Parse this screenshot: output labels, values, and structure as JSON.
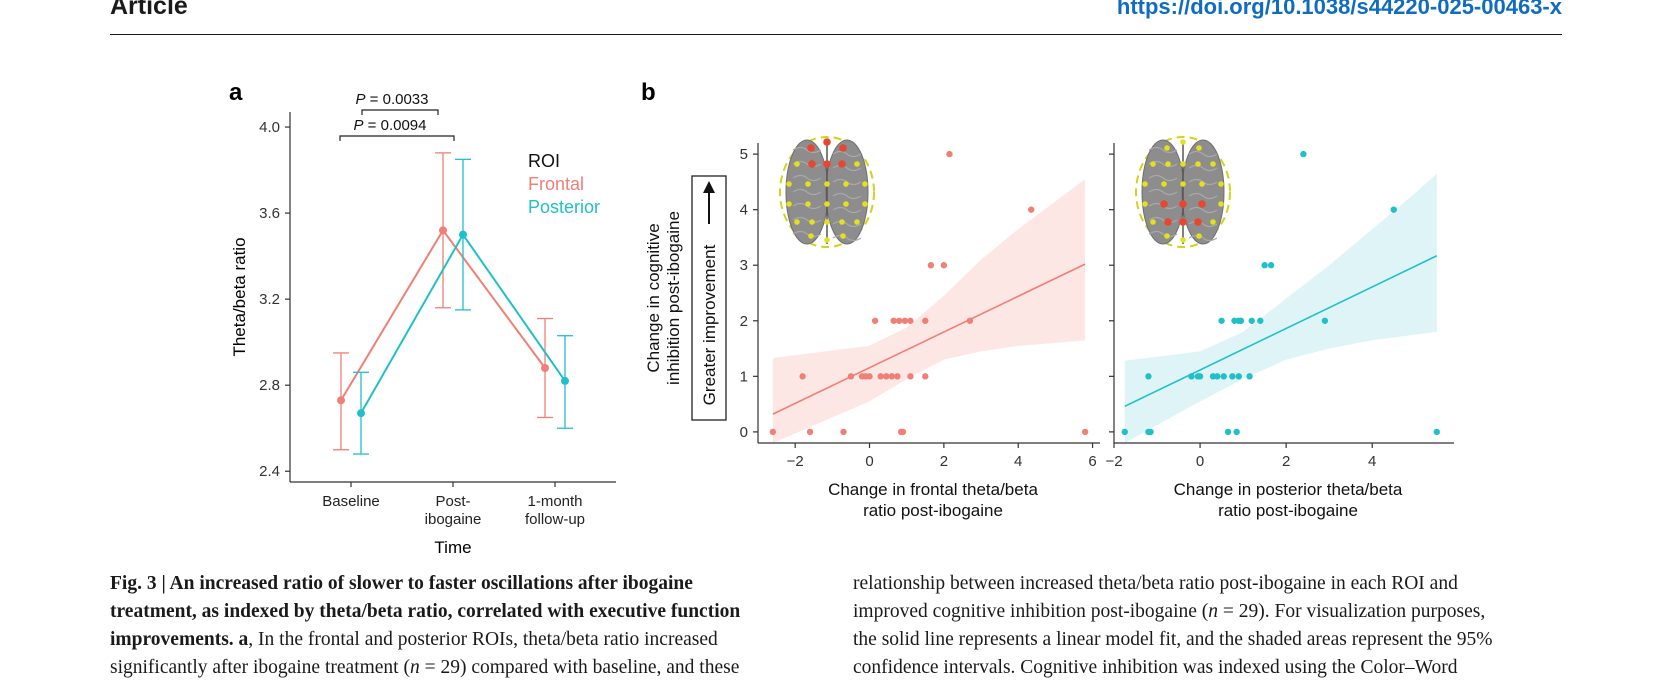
{
  "header": {
    "section": "Article",
    "doi": "https://doi.org/10.1038/s44220-025-00463-x"
  },
  "colors": {
    "frontal": "#f07f76",
    "posterior": "#20c0c8",
    "frontal_band": "#fde7e5",
    "posterior_band": "#dff4f6",
    "link": "#0f6cbf"
  },
  "panel_a": {
    "label": "a",
    "ylabel": "Theta/beta ratio",
    "xlabel": "Time",
    "yticks": [
      "4.0",
      "3.6",
      "3.2",
      "2.8",
      "2.4"
    ],
    "xcats": [
      [
        "Baseline"
      ],
      [
        "Post-",
        "ibogaine"
      ],
      [
        "1-month",
        "follow-up"
      ]
    ],
    "legend": {
      "title": "ROI",
      "items": [
        "Frontal",
        "Posterior"
      ]
    },
    "sig": [
      {
        "p_label": "P",
        "text": " = 0.0033"
      },
      {
        "p_label": "P",
        "text": " = 0.0094"
      }
    ]
  },
  "panel_b": {
    "label": "b",
    "ylabel_lines": [
      "Change in cognitive",
      "inhibition post-ibogaine"
    ],
    "arrow_label": "Greater improvement",
    "yticks": [
      "5",
      "4",
      "3",
      "2",
      "1",
      "0"
    ],
    "left": {
      "xticks": [
        "−2",
        "0",
        "2",
        "4",
        "6"
      ],
      "xlabel_lines": [
        "Change in frontal theta/beta",
        "ratio post-ibogaine"
      ]
    },
    "right": {
      "xticks": [
        "−2",
        "0",
        "2",
        "4"
      ],
      "xlabel_lines": [
        "Change in posterior theta/beta",
        "ratio post-ibogaine"
      ]
    }
  },
  "chart_data": [
    {
      "type": "line",
      "panel": "a",
      "categories": [
        "Baseline",
        "Post-ibogaine",
        "1-month follow-up"
      ],
      "ylabel": "Theta/beta ratio",
      "xlabel": "Time",
      "ylim": [
        2.35,
        4.07
      ],
      "series": [
        {
          "name": "Frontal",
          "values": [
            2.73,
            3.52,
            2.88
          ],
          "err_low": [
            2.5,
            3.16,
            2.65
          ],
          "err_high": [
            2.95,
            3.88,
            3.11
          ]
        },
        {
          "name": "Posterior",
          "values": [
            2.67,
            3.5,
            2.82
          ],
          "err_low": [
            2.48,
            3.15,
            2.6
          ],
          "err_high": [
            2.86,
            3.85,
            3.03
          ]
        }
      ],
      "annotations": [
        "P = 0.0033",
        "P = 0.0094"
      ]
    },
    {
      "type": "scatter",
      "panel": "b-left",
      "xlim": [
        -3,
        6.2
      ],
      "ylim": [
        -0.2,
        5.2
      ],
      "points": [
        [
          -2.6,
          0
        ],
        [
          -1.6,
          0
        ],
        [
          -0.7,
          0
        ],
        [
          0.85,
          0
        ],
        [
          0.9,
          0
        ],
        [
          5.8,
          0
        ],
        [
          -1.8,
          1
        ],
        [
          -0.5,
          1
        ],
        [
          -0.2,
          1
        ],
        [
          -0.1,
          1
        ],
        [
          0,
          1
        ],
        [
          0.3,
          1
        ],
        [
          0.45,
          1
        ],
        [
          0.6,
          1
        ],
        [
          0.75,
          1
        ],
        [
          1.1,
          1
        ],
        [
          1.5,
          1
        ],
        [
          0.15,
          2
        ],
        [
          0.65,
          2
        ],
        [
          0.8,
          2
        ],
        [
          0.95,
          2
        ],
        [
          1.1,
          2
        ],
        [
          1.5,
          2
        ],
        [
          2.7,
          2
        ],
        [
          1.65,
          3
        ],
        [
          2.0,
          3
        ],
        [
          4.35,
          4
        ],
        [
          2.15,
          5
        ]
      ],
      "fit": {
        "x": [
          -2.6,
          5.8
        ],
        "y": [
          0.32,
          3.02
        ]
      },
      "ci": {
        "x": [
          -2.6,
          0,
          1,
          2,
          3,
          4,
          5,
          5.8
        ],
        "lower": [
          -0.6,
          0.55,
          0.95,
          1.3,
          1.45,
          1.55,
          1.6,
          1.65
        ],
        "upper": [
          1.33,
          1.55,
          1.88,
          2.45,
          3.1,
          3.65,
          4.15,
          4.55
        ]
      }
    },
    {
      "type": "scatter",
      "panel": "b-right",
      "xlim": [
        -2.0,
        5.9
      ],
      "ylim": [
        -0.2,
        5.2
      ],
      "points": [
        [
          -1.75,
          0
        ],
        [
          -1.2,
          0
        ],
        [
          -1.15,
          0
        ],
        [
          0.65,
          0
        ],
        [
          0.85,
          0
        ],
        [
          5.5,
          0
        ],
        [
          -1.2,
          1
        ],
        [
          -0.2,
          1
        ],
        [
          -0.05,
          1
        ],
        [
          0,
          1
        ],
        [
          0.3,
          1
        ],
        [
          0.4,
          1
        ],
        [
          0.55,
          1
        ],
        [
          0.75,
          1
        ],
        [
          0.9,
          1
        ],
        [
          1.15,
          1
        ],
        [
          0.5,
          2
        ],
        [
          0.8,
          2
        ],
        [
          0.9,
          2
        ],
        [
          0.95,
          2
        ],
        [
          1.2,
          2
        ],
        [
          1.4,
          2
        ],
        [
          2.9,
          2
        ],
        [
          1.5,
          3
        ],
        [
          1.65,
          3
        ],
        [
          4.5,
          4
        ],
        [
          2.4,
          5
        ]
      ],
      "fit": {
        "x": [
          -1.75,
          5.5
        ],
        "y": [
          0.46,
          3.17
        ]
      },
      "ci": {
        "x": [
          -1.75,
          0,
          1,
          2,
          3,
          4,
          5,
          5.5
        ],
        "lower": [
          -0.4,
          0.55,
          0.95,
          1.3,
          1.5,
          1.65,
          1.75,
          1.8
        ],
        "upper": [
          1.28,
          1.45,
          1.8,
          2.4,
          3.0,
          3.65,
          4.3,
          4.65
        ]
      }
    }
  ],
  "caption": {
    "left_lines": [
      [
        {
          "t": "Fig. 3 | An increased ratio of slower to faster oscillations after ibogaine",
          "s": "b"
        }
      ],
      [
        {
          "t": "treatment, as indexed by theta/beta ratio, correlated with executive function",
          "s": "b"
        }
      ],
      [
        {
          "t": "improvements. a",
          "s": "b"
        },
        {
          "t": ", In the frontal and posterior ROIs, theta/beta ratio increased",
          "s": ""
        }
      ],
      [
        {
          "t": "significantly after ibogaine treatment (",
          "s": ""
        },
        {
          "t": "n",
          "s": "i"
        },
        {
          "t": " = 29) compared with baseline, and these",
          "s": ""
        }
      ]
    ],
    "right_lines": [
      [
        {
          "t": "relationship between increased theta/beta ratio post-ibogaine in each ROI and",
          "s": ""
        }
      ],
      [
        {
          "t": "improved cognitive inhibition post-ibogaine (",
          "s": ""
        },
        {
          "t": "n",
          "s": "i"
        },
        {
          "t": " = 29). For visualization purposes,",
          "s": ""
        }
      ],
      [
        {
          "t": "the solid line represents a linear model fit, and the shaded areas represent the 95%",
          "s": ""
        }
      ],
      [
        {
          "t": "confidence intervals. Cognitive inhibition was indexed using the Color–Word",
          "s": ""
        }
      ]
    ]
  }
}
